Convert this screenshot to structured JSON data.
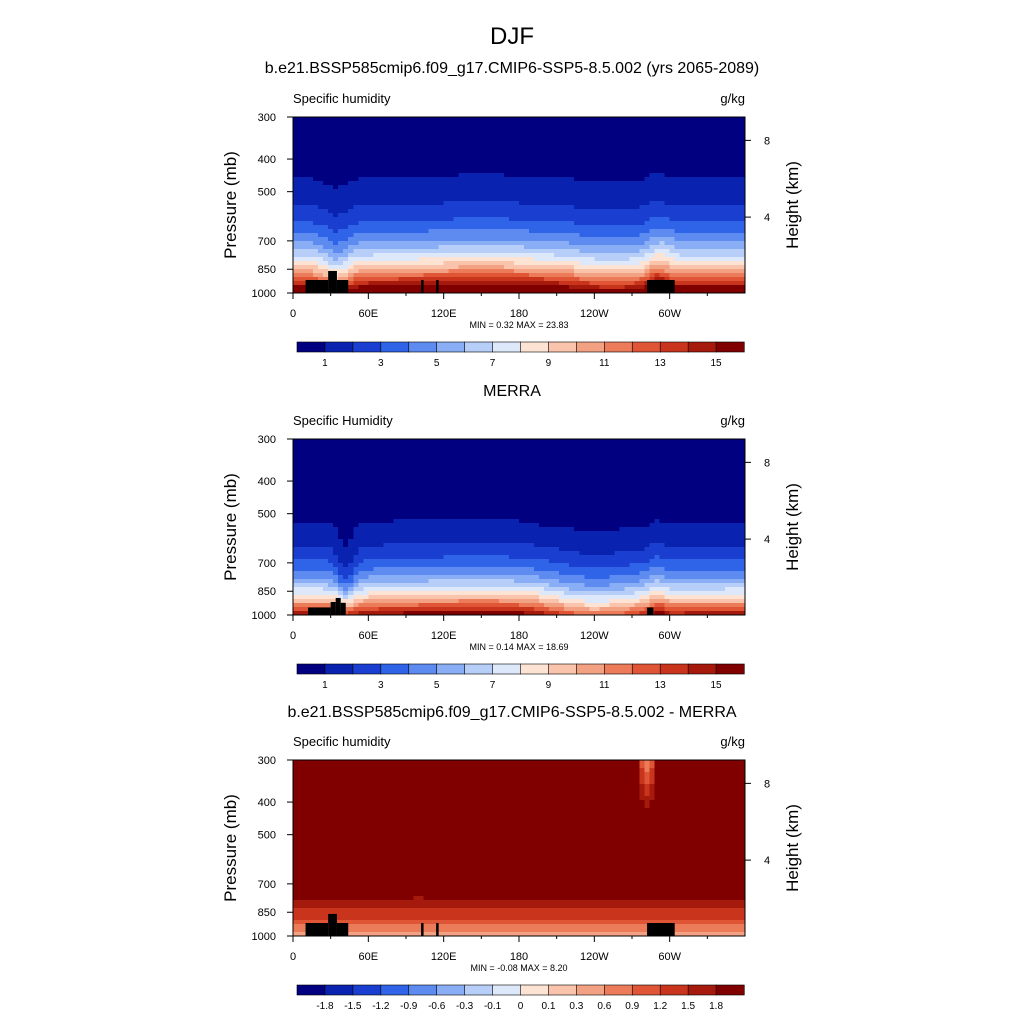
{
  "main_title": "DJF",
  "panels": [
    {
      "title": "b.e21.BSSP585cmip6.f09_g17.CMIP6-SSP5-8.5.002 (yrs 2065-2089)",
      "left_label": "Specific humidity",
      "right_label": "g/kg",
      "stats": "MIN =   0.32  MAX =  23.83"
    },
    {
      "title": "MERRA",
      "left_label": "Specific Humidity",
      "right_label": "g/kg",
      "stats": "MIN =   0.14  MAX =  18.69"
    },
    {
      "title": "b.e21.BSSP585cmip6.f09_g17.CMIP6-SSP5-8.5.002 - MERRA",
      "left_label": "Specific humidity",
      "right_label": "g/kg",
      "stats": "MIN =  -0.08  MAX =   8.20"
    }
  ],
  "chart_data": [
    {
      "type": "heatmap",
      "title": "b.e21.BSSP585cmip6.f09_g17.CMIP6-SSP5-8.5.002 (yrs 2065-2089)",
      "field": "Specific humidity",
      "units": "g/kg",
      "ylabel": "Pressure (mb)",
      "ylabel_right": "Height (km)",
      "xticks": [
        "0",
        "60E",
        "120E",
        "180",
        "120W",
        "60W"
      ],
      "xlim": [
        0,
        360
      ],
      "yticks": [
        300,
        400,
        500,
        700,
        850,
        1000
      ],
      "ylim": [
        1000,
        300
      ],
      "y_scale": "log",
      "yticks_right": [
        8,
        4
      ],
      "levels": [
        0,
        1,
        2,
        3,
        4,
        5,
        6,
        7,
        8,
        9,
        10,
        11,
        12,
        13,
        14,
        15,
        16
      ],
      "level_labels": [
        "1",
        "3",
        "5",
        "7",
        "9",
        "11",
        "13",
        "15"
      ],
      "colors": [
        "#000080",
        "#0a22b0",
        "#1a3fd0",
        "#2f63e8",
        "#5d8bf0",
        "#8aaef5",
        "#b7cff8",
        "#dde8fb",
        "#fde3d4",
        "#f9c4ab",
        "#f3a183",
        "#ec7b5a",
        "#e05535",
        "#c8351c",
        "#a51a0d",
        "#800000"
      ],
      "min": 0.32,
      "max": 23.83
    },
    {
      "type": "heatmap",
      "title": "MERRA",
      "field": "Specific Humidity",
      "units": "g/kg",
      "ylabel": "Pressure (mb)",
      "ylabel_right": "Height (km)",
      "xticks": [
        "0",
        "60E",
        "120E",
        "180",
        "120W",
        "60W"
      ],
      "xlim": [
        0,
        360
      ],
      "yticks": [
        300,
        400,
        500,
        700,
        850,
        1000
      ],
      "ylim": [
        1000,
        300
      ],
      "y_scale": "log",
      "yticks_right": [
        8,
        4
      ],
      "levels": [
        0,
        1,
        2,
        3,
        4,
        5,
        6,
        7,
        8,
        9,
        10,
        11,
        12,
        13,
        14,
        15,
        16
      ],
      "level_labels": [
        "1",
        "3",
        "5",
        "7",
        "9",
        "11",
        "13",
        "15"
      ],
      "colors": [
        "#000080",
        "#0a22b0",
        "#1a3fd0",
        "#2f63e8",
        "#5d8bf0",
        "#8aaef5",
        "#b7cff8",
        "#dde8fb",
        "#fde3d4",
        "#f9c4ab",
        "#f3a183",
        "#ec7b5a",
        "#e05535",
        "#c8351c",
        "#a51a0d",
        "#800000"
      ],
      "min": 0.14,
      "max": 18.69
    },
    {
      "type": "heatmap",
      "title": "b.e21.BSSP585cmip6.f09_g17.CMIP6-SSP5-8.5.002 - MERRA",
      "field": "Specific humidity",
      "units": "g/kg",
      "ylabel": "Pressure (mb)",
      "ylabel_right": "Height (km)",
      "xticks": [
        "0",
        "60E",
        "120E",
        "180",
        "120W",
        "60W"
      ],
      "xlim": [
        0,
        360
      ],
      "yticks": [
        300,
        400,
        500,
        700,
        850,
        1000
      ],
      "ylim": [
        1000,
        300
      ],
      "y_scale": "log",
      "yticks_right": [
        8,
        4
      ],
      "levels": [
        -2.1,
        -1.8,
        -1.5,
        -1.2,
        -0.9,
        -0.6,
        -0.3,
        -0.1,
        0,
        0.1,
        0.3,
        0.6,
        0.9,
        1.2,
        1.5,
        1.8,
        2.1
      ],
      "level_labels": [
        "-1.8",
        "-1.5",
        "-1.2",
        "-0.9",
        "-0.6",
        "-0.3",
        "-0.1",
        "0",
        "0.1",
        "0.3",
        "0.6",
        "0.9",
        "1.2",
        "1.5",
        "1.8"
      ],
      "colors": [
        "#000080",
        "#0a22b0",
        "#1a3fd0",
        "#2f63e8",
        "#5d8bf0",
        "#8aaef5",
        "#b7cff8",
        "#dde8fb",
        "#fde3d4",
        "#f9c4ab",
        "#f3a183",
        "#ec7b5a",
        "#e05535",
        "#c8351c",
        "#a51a0d",
        "#800000"
      ],
      "min": -0.08,
      "max": 8.2
    }
  ]
}
